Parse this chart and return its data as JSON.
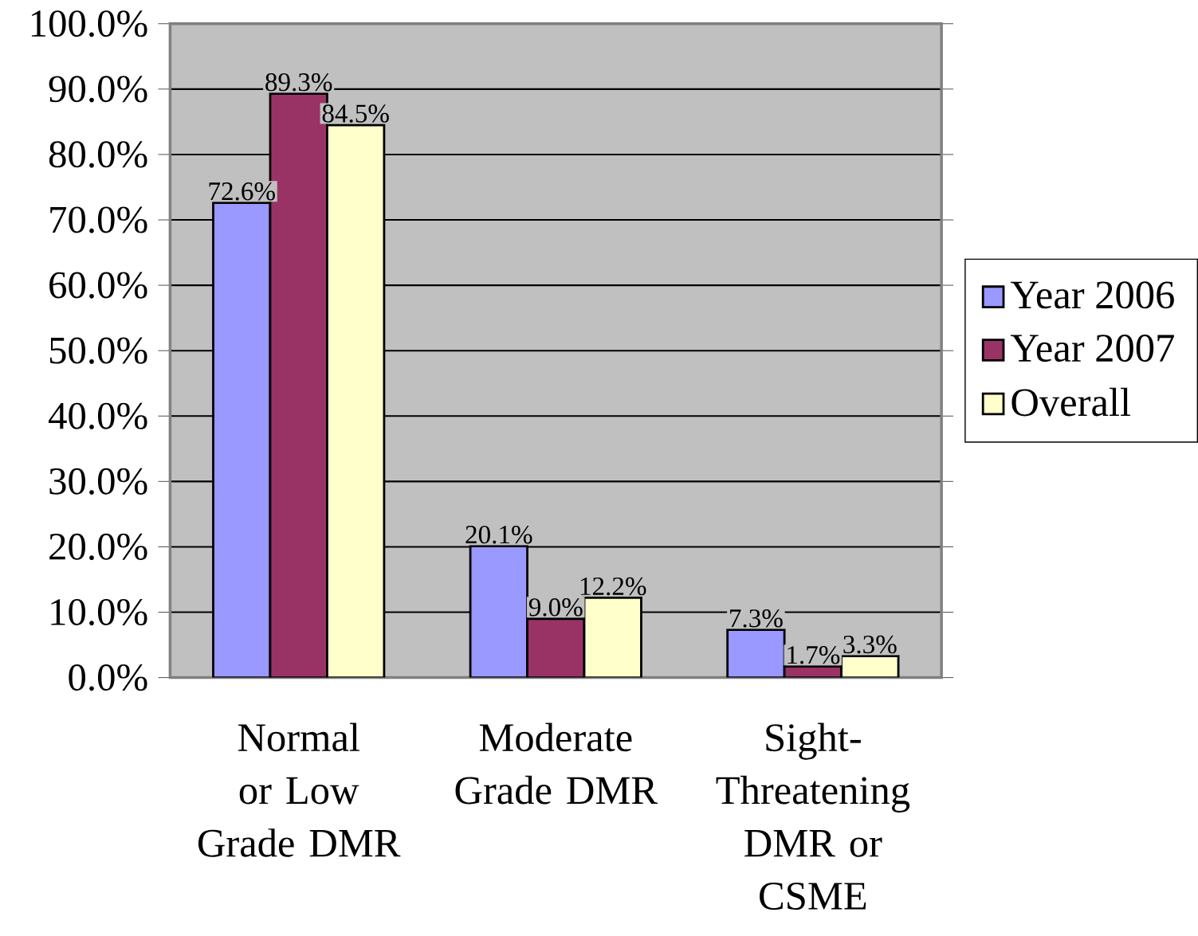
{
  "chart_data": {
    "type": "bar",
    "categories": [
      "Normal or Low Grade DMR",
      "Moderate Grade DMR",
      "Sight-Threatening DMR or CSME"
    ],
    "series": [
      {
        "name": "Year 2006",
        "color": "#9999ff",
        "values": [
          72.6,
          20.1,
          7.3
        ],
        "value_labels": [
          "72.6%",
          "20.1%",
          "7.3%"
        ]
      },
      {
        "name": "Year 2007",
        "color": "#993366",
        "values": [
          89.3,
          9.0,
          1.7
        ],
        "value_labels": [
          "89.3%",
          "9.0%",
          "1.7%"
        ]
      },
      {
        "name": "Overall",
        "color": "#ffffcc",
        "values": [
          84.5,
          12.2,
          3.3
        ],
        "value_labels": [
          "84.5%",
          "12.2%",
          "3.3%"
        ]
      }
    ],
    "ylim": [
      0,
      100
    ],
    "yticks": [
      {
        "value": 0,
        "label": "0.0%"
      },
      {
        "value": 10,
        "label": "10.0%"
      },
      {
        "value": 20,
        "label": "20.0%"
      },
      {
        "value": 30,
        "label": "30.0%"
      },
      {
        "value": 40,
        "label": "40.0%"
      },
      {
        "value": 50,
        "label": "50.0%"
      },
      {
        "value": 60,
        "label": "60.0%"
      },
      {
        "value": 70,
        "label": "70.0%"
      },
      {
        "value": 80,
        "label": "80.0%"
      },
      {
        "value": 90,
        "label": "90.0%"
      },
      {
        "value": 100,
        "label": "100.0%"
      }
    ],
    "grid": "y",
    "legend": "right"
  }
}
